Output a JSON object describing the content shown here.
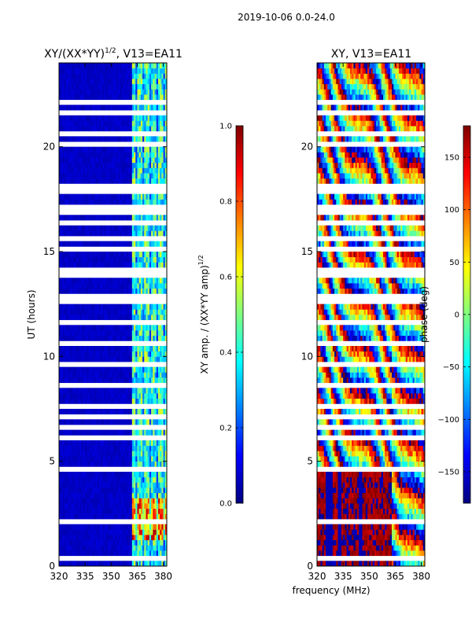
{
  "suptitle": "2019-10-06 0.0-24.0",
  "common_xlabel": "frequency (MHz)",
  "colors": {
    "jet": [
      "#00007f",
      "#0000ff",
      "#007fff",
      "#00ffff",
      "#7fff7f",
      "#ffff00",
      "#ff7f00",
      "#ff0000",
      "#7f0000"
    ]
  },
  "chart_data": [
    {
      "type": "heatmap",
      "title": "XY/(XX*YY)",
      "title_exp": "1/2",
      "title_suffix": ", V13=EA11",
      "xlabel": "",
      "ylabel": "UT (hours)",
      "xlim": [
        320,
        382
      ],
      "ylim": [
        0,
        24
      ],
      "xticks": [
        320,
        335,
        350,
        365,
        380
      ],
      "yticks": [
        0,
        5,
        10,
        15,
        20
      ],
      "colorbar": {
        "label": "XY amp. / (XX*YY amp)",
        "label_exp": "1/2",
        "range": [
          0.0,
          1.0
        ],
        "ticks": [
          "0.0",
          "0.2",
          "0.4",
          "0.6",
          "0.8",
          "1.0"
        ],
        "tick_values": [
          0.0,
          0.2,
          0.4,
          0.6,
          0.8,
          1.0
        ]
      },
      "description": "Mostly low amplitude (~0.05) below 362 MHz; elevated amplitude (0.2-0.7) in 362-382 MHz band, strongest (up to ~0.9) around 1.5-3 UT near 365-380 MHz."
    },
    {
      "type": "heatmap",
      "title": "XY, V13=EA11",
      "xlabel": "frequency (MHz)",
      "ylabel": "",
      "xlim": [
        320,
        382
      ],
      "ylim": [
        0,
        24
      ],
      "xticks": [
        320,
        335,
        350,
        365,
        380
      ],
      "yticks": [
        0,
        5,
        10,
        15,
        20
      ],
      "colorbar": {
        "label": "phase (deg)",
        "range": [
          -180,
          180
        ],
        "ticks": [
          "−150",
          "−100",
          "−50",
          "0",
          "50",
          "100",
          "150"
        ],
        "tick_values": [
          -150,
          -100,
          -50,
          0,
          50,
          100,
          150
        ]
      },
      "description": "Phase near ±180 deg (red/dark blue) for 0-4.5 UT below 363 MHz; wrapping phase stripes across 4.5-24 UT."
    }
  ],
  "flagged_hours": [
    0.4,
    1.2,
    1.8,
    2.1,
    2.7,
    3.0,
    3.3,
    4.3,
    4.6,
    4.7,
    5.0,
    5.3,
    5.7,
    6.1,
    6.3,
    6.6,
    7.0,
    7.1,
    7.3,
    7.6,
    8.0,
    8.6,
    8.8,
    9.6,
    10.3,
    10.6,
    10.7,
    11.0,
    11.3,
    11.6,
    12.0,
    12.3,
    12.6,
    12.9,
    13.2,
    13.5,
    13.9,
    14.1,
    14.5,
    14.8,
    15.1,
    15.5,
    15.6,
    16.0,
    16.2,
    16.4,
    16.7,
    16.9,
    17.1,
    17.3,
    17.5,
    17.7,
    17.9,
    18.1,
    18.3,
    18.7,
    19.2,
    19.5,
    20.1,
    20.6,
    21.2,
    21.6,
    22.0,
    22.1,
    22.2
  ]
}
